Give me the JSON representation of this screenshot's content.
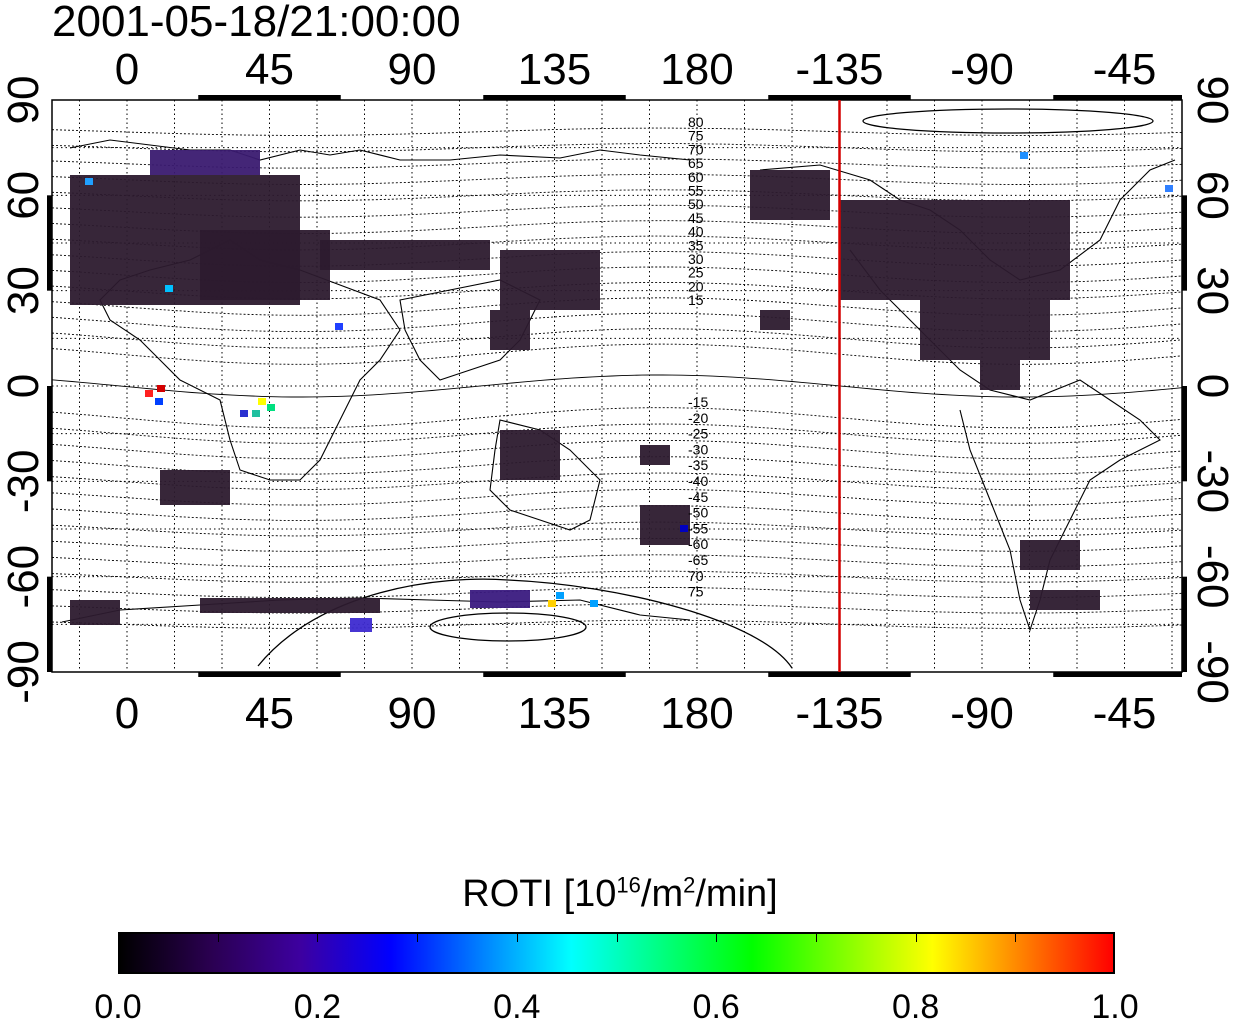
{
  "map": {
    "timestamp": "2001-05-18/21:00:00",
    "top_lon_labels": [
      "0",
      "45",
      "90",
      "135",
      "180",
      "-135",
      "-90",
      "-45"
    ],
    "bottom_lon_labels": [
      "0",
      "45",
      "90",
      "135",
      "180",
      "-135",
      "-90",
      "-45"
    ],
    "left_lat_labels": [
      "90",
      "60",
      "30",
      "0",
      "-30",
      "-60",
      "-90"
    ],
    "right_lat_labels": [
      "90",
      "60",
      "30",
      "0",
      "-30",
      "-60",
      "-90"
    ],
    "lon_ticks": [
      0,
      45,
      90,
      135,
      180,
      -135,
      -90,
      -45
    ],
    "lat_ticks": [
      90,
      60,
      30,
      0,
      -30,
      -60,
      -90
    ],
    "marker_lon": -135,
    "marker_color": "#d40000",
    "magnetic_lat_labels_north": [
      "80",
      "75",
      "70",
      "65",
      "60",
      "55",
      "50",
      "45",
      "40",
      "35",
      "30",
      "25",
      "20",
      "15"
    ],
    "magnetic_lat_labels_south": [
      "-15",
      "-20",
      "-25",
      "-30",
      "-35",
      "-40",
      "-45",
      "-50",
      "-55",
      "-60",
      "-65",
      "70",
      "75"
    ],
    "grid": true
  },
  "colorbar": {
    "label_prefix": "ROTI  [10",
    "label_sup1": "16",
    "label_mid": "/m",
    "label_sup2": "2",
    "label_suffix": "/min]",
    "tick_labels": [
      "0.0",
      "0.2",
      "0.4",
      "0.6",
      "0.8",
      "1.0"
    ],
    "ticks": [
      0.0,
      0.2,
      0.4,
      0.6,
      0.8,
      1.0
    ],
    "range": [
      0.0,
      1.0
    ],
    "colors": [
      "#000000",
      "#2a0050",
      "#3d00a0",
      "#0000ff",
      "#0080ff",
      "#00ffff",
      "#00ff80",
      "#00ff00",
      "#80ff00",
      "#ffff00",
      "#ff8000",
      "#ff0000"
    ]
  }
}
